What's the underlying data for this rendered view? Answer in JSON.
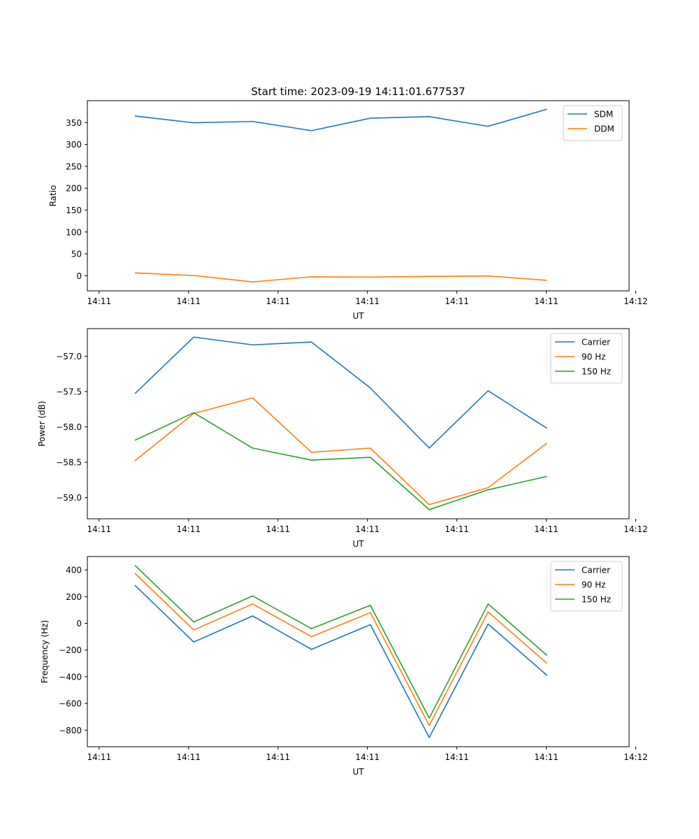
{
  "figure_title": "Start time: 2023-09-19 14:11:01.677537",
  "colors": {
    "blue": "#1f77b4",
    "orange": "#ff7f0e",
    "green": "#2ca02c",
    "axis": "#000000",
    "legend_border": "#cccccc"
  },
  "chart_data": [
    {
      "id": "ratio",
      "type": "line",
      "title": "Start time: 2023-09-19 14:11:01.677537",
      "xlabel": "UT",
      "ylabel": "Ratio",
      "x": [
        1,
        2,
        3,
        4,
        5,
        6,
        7,
        8
      ],
      "xlim": [
        0.1935,
        9.3945
      ],
      "xticks": [
        0.3935,
        1.9125,
        3.4315,
        4.9505,
        6.4695,
        7.9885,
        9.5075
      ],
      "xtick_labels": [
        "14:11",
        "14:11",
        "14:11",
        "14:11",
        "14:11",
        "14:11",
        "14:12"
      ],
      "ylim": [
        -34.5,
        400
      ],
      "yticks": [
        0,
        50,
        100,
        150,
        200,
        250,
        300,
        350
      ],
      "ytick_labels": [
        "0",
        "50",
        "100",
        "150",
        "200",
        "250",
        "300",
        "350"
      ],
      "legend_position": "top-right",
      "series": [
        {
          "name": "SDM",
          "color": "#1f77b4",
          "values": [
            365,
            349.5,
            352.5,
            331.5,
            360,
            363.5,
            341.5,
            380.5
          ]
        },
        {
          "name": "DDM",
          "color": "#ff7f0e",
          "values": [
            6.5,
            0.5,
            -14,
            -2.5,
            -3,
            -1.5,
            -0.5,
            -10.5
          ]
        }
      ]
    },
    {
      "id": "power",
      "type": "line",
      "title": "",
      "xlabel": "UT",
      "ylabel": "Power (dB)",
      "x": [
        1,
        2,
        3,
        4,
        5,
        6,
        7,
        8
      ],
      "xlim": [
        0.1935,
        9.3945
      ],
      "xticks": [
        0.3935,
        1.9125,
        3.4315,
        4.9505,
        6.4695,
        7.9885,
        9.5075
      ],
      "xtick_labels": [
        "14:11",
        "14:11",
        "14:11",
        "14:11",
        "14:11",
        "14:11",
        "14:12"
      ],
      "ylim": [
        -59.3,
        -56.61
      ],
      "yticks": [
        -59.0,
        -58.5,
        -58.0,
        -57.5,
        -57.0
      ],
      "ytick_labels": [
        "−59.0",
        "−58.5",
        "−58.0",
        "−57.5",
        "−57.0"
      ],
      "legend_position": "top-right",
      "series": [
        {
          "name": "Carrier",
          "color": "#1f77b4",
          "values": [
            -57.53,
            -56.73,
            -56.84,
            -56.8,
            -57.45,
            -58.3,
            -57.49,
            -58.02
          ]
        },
        {
          "name": "90 Hz",
          "color": "#ff7f0e",
          "values": [
            -58.48,
            -57.81,
            -57.59,
            -58.36,
            -58.3,
            -59.1,
            -58.86,
            -58.23
          ]
        },
        {
          "name": "150 Hz",
          "color": "#2ca02c",
          "values": [
            -58.19,
            -57.8,
            -58.3,
            -58.47,
            -58.43,
            -59.17,
            -58.89,
            -58.7
          ]
        }
      ]
    },
    {
      "id": "frequency",
      "type": "line",
      "title": "",
      "xlabel": "UT",
      "ylabel": "Frequency (Hz)",
      "x": [
        1,
        2,
        3,
        4,
        5,
        6,
        7,
        8
      ],
      "xlim": [
        0.1935,
        9.3945
      ],
      "xticks": [
        0.3935,
        1.9125,
        3.4315,
        4.9505,
        6.4695,
        7.9885,
        9.5075
      ],
      "xtick_labels": [
        "14:11",
        "14:11",
        "14:11",
        "14:11",
        "14:11",
        "14:11",
        "14:12"
      ],
      "ylim": [
        -924,
        500
      ],
      "yticks": [
        -800,
        -600,
        -400,
        -200,
        0,
        200,
        400
      ],
      "ytick_labels": [
        "−800",
        "−600",
        "−400",
        "−200",
        "0",
        "200",
        "400"
      ],
      "legend_position": "top-right",
      "series": [
        {
          "name": "Carrier",
          "color": "#1f77b4",
          "values": [
            285,
            -140,
            55,
            -195,
            -10,
            -855,
            -5,
            -390
          ]
        },
        {
          "name": "90 Hz",
          "color": "#ff7f0e",
          "values": [
            375,
            -50,
            145,
            -100,
            80,
            -765,
            85,
            -300
          ]
        },
        {
          "name": "150 Hz",
          "color": "#2ca02c",
          "values": [
            435,
            10,
            205,
            -40,
            135,
            -710,
            145,
            -240
          ]
        }
      ]
    }
  ]
}
